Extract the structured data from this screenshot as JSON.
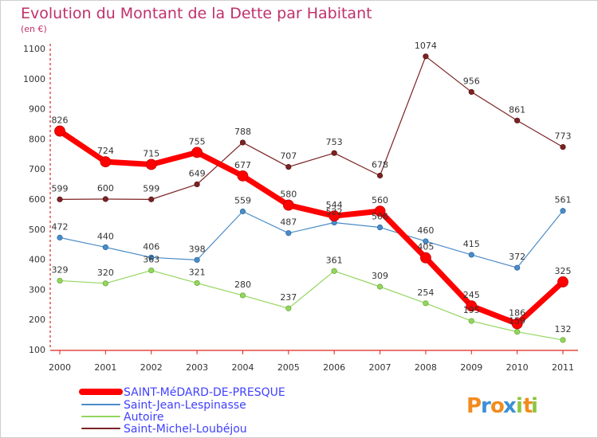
{
  "chart_data": {
    "type": "line",
    "title": "Evolution du Montant de la Dette par Habitant",
    "subtitle": "(en €)",
    "categories": [
      "2000",
      "2001",
      "2002",
      "2003",
      "2004",
      "2005",
      "2006",
      "2007",
      "2008",
      "2009",
      "2010",
      "2011"
    ],
    "y_ticks": [
      "100",
      "200",
      "300",
      "400",
      "500",
      "600",
      "700",
      "800",
      "900",
      "1000",
      "1100"
    ],
    "ylim": [
      100,
      1100
    ],
    "grid": false,
    "legend_position": "bottom-left",
    "series": [
      {
        "name": "SAINT-MéDARD-DE-PRESQUE",
        "color": "#ff0000",
        "emphasis": true,
        "values": [
          826,
          724,
          715,
          755,
          677,
          580,
          544,
          560,
          405,
          245,
          186,
          325
        ]
      },
      {
        "name": "Saint-Jean-Lespinasse",
        "color": "#4a8cc8",
        "values": [
          472,
          440,
          406,
          398,
          559,
          487,
          522,
          506,
          460,
          415,
          372,
          561
        ]
      },
      {
        "name": "Autoire",
        "color": "#94d65e",
        "values": [
          329,
          320,
          363,
          321,
          280,
          237,
          361,
          309,
          254,
          195,
          159,
          132
        ]
      },
      {
        "name": "Saint-Michel-Loubéjou",
        "color": "#7b2323",
        "values": [
          599,
          600,
          599,
          649,
          788,
          707,
          753,
          678,
          1074,
          956,
          861,
          773
        ]
      }
    ],
    "labels": [
      [
        "826",
        "724",
        "715",
        "755",
        "677",
        "580",
        "544",
        "560",
        "405",
        "245",
        "186",
        "325"
      ],
      [
        "472",
        "440",
        "406",
        "398",
        "559",
        "487",
        "522",
        "506",
        "460",
        "415",
        "372",
        "561"
      ],
      [
        "329",
        "320",
        "363",
        "321",
        "280",
        "237",
        "361",
        "309",
        "254",
        "195",
        "159",
        "132"
      ],
      [
        "599",
        "600",
        "599",
        "649",
        "788",
        "707",
        "753",
        "678",
        "1074",
        "956",
        "861",
        "773"
      ]
    ]
  },
  "logo": {
    "letters": [
      "P",
      "r",
      "o",
      "x",
      "i",
      "t",
      "i"
    ],
    "colors": [
      "#f28c1e",
      "#3c8fd6",
      "#f28c1e",
      "#3c8fd6",
      "#8cc63f",
      "#f28c1e",
      "#8cc63f"
    ]
  }
}
